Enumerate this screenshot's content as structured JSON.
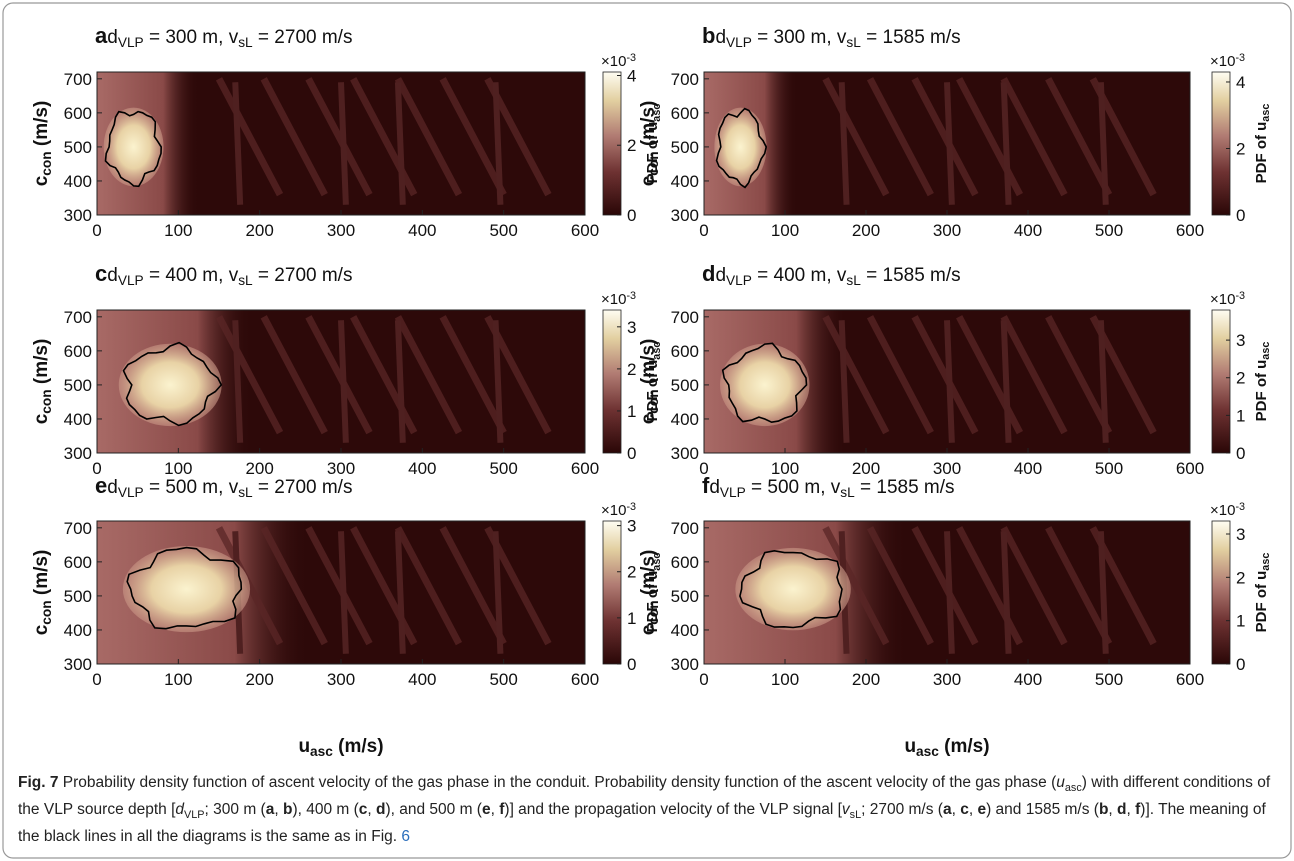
{
  "chart_data": [
    {
      "type": "heatmap",
      "label": "a",
      "title": [
        "d",
        "VLP",
        " = 300 m, v",
        "sL",
        " = 2700 m/s"
      ],
      "ylabel": [
        "c",
        "con",
        " (m/s)"
      ],
      "xlim": [
        0,
        600
      ],
      "xticks": [
        0,
        100,
        200,
        300,
        400,
        500,
        600
      ],
      "ylim": [
        300,
        720
      ],
      "yticks": [
        300,
        400,
        500,
        600,
        700
      ],
      "colorbar": {
        "label": [
          "PDF of u",
          "asc"
        ],
        "scale": [
          "×10",
          "-3"
        ],
        "lim": [
          0,
          4.1
        ],
        "ticks": [
          0,
          2,
          4
        ]
      }
    },
    {
      "type": "heatmap",
      "label": "b",
      "title": [
        "d",
        "VLP",
        " = 300 m, v",
        "sL",
        " = 1585 m/s"
      ],
      "ylabel": [
        "c",
        "con",
        " (m/s)"
      ],
      "xlim": [
        0,
        600
      ],
      "xticks": [
        0,
        100,
        200,
        300,
        400,
        500,
        600
      ],
      "ylim": [
        300,
        720
      ],
      "yticks": [
        300,
        400,
        500,
        600,
        700
      ],
      "colorbar": {
        "label": [
          "PDF of u",
          "asc"
        ],
        "scale": [
          "×10",
          "-3"
        ],
        "lim": [
          0,
          4.3
        ],
        "ticks": [
          0,
          2,
          4
        ]
      }
    },
    {
      "type": "heatmap",
      "label": "c",
      "title": [
        "d",
        "VLP",
        " = 400 m, v",
        "sL",
        " = 2700 m/s"
      ],
      "ylabel": [
        "c",
        "con",
        " (m/s)"
      ],
      "xlim": [
        0,
        600
      ],
      "xticks": [
        0,
        100,
        200,
        300,
        400,
        500,
        600
      ],
      "ylim": [
        300,
        720
      ],
      "yticks": [
        300,
        400,
        500,
        600,
        700
      ],
      "colorbar": {
        "label": [
          "PDF of u",
          "asc"
        ],
        "scale": [
          "×10",
          "-3"
        ],
        "lim": [
          0,
          3.4
        ],
        "ticks": [
          0,
          1,
          2,
          3
        ]
      }
    },
    {
      "type": "heatmap",
      "label": "d",
      "title": [
        "d",
        "VLP",
        " = 400 m, v",
        "sL",
        " = 1585 m/s"
      ],
      "ylabel": [
        "c",
        "con",
        " (m/s)"
      ],
      "xlim": [
        0,
        600
      ],
      "xticks": [
        0,
        100,
        200,
        300,
        400,
        500,
        600
      ],
      "ylim": [
        300,
        720
      ],
      "yticks": [
        300,
        400,
        500,
        600,
        700
      ],
      "colorbar": {
        "label": [
          "PDF of u",
          "asc"
        ],
        "scale": [
          "×10",
          "-3"
        ],
        "lim": [
          0,
          3.8
        ],
        "ticks": [
          0,
          1,
          2,
          3
        ]
      }
    },
    {
      "type": "heatmap",
      "label": "e",
      "title": [
        "d",
        "VLP",
        " = 500 m, v",
        "sL",
        " = 2700 m/s"
      ],
      "ylabel": [
        "c",
        "con",
        " (m/s)"
      ],
      "xlabel": [
        "u",
        "asc",
        " (m/s)"
      ],
      "xlim": [
        0,
        600
      ],
      "xticks": [
        0,
        100,
        200,
        300,
        400,
        500,
        600
      ],
      "ylim": [
        300,
        720
      ],
      "yticks": [
        300,
        400,
        500,
        600,
        700
      ],
      "colorbar": {
        "label": [
          "PDF of u",
          "asc"
        ],
        "scale": [
          "×10",
          "-3"
        ],
        "lim": [
          0,
          3.1
        ],
        "ticks": [
          0,
          1,
          2,
          3
        ]
      }
    },
    {
      "type": "heatmap",
      "label": "f",
      "title": [
        "d",
        "VLP",
        " = 500 m, v",
        "sL",
        " = 1585 m/s"
      ],
      "ylabel": [
        "c",
        "con",
        " (m/s)"
      ],
      "xlabel": [
        "u",
        "asc",
        " (m/s)"
      ],
      "xlim": [
        0,
        600
      ],
      "xticks": [
        0,
        100,
        200,
        300,
        400,
        500,
        600
      ],
      "ylim": [
        300,
        720
      ],
      "yticks": [
        300,
        400,
        500,
        600,
        700
      ],
      "colorbar": {
        "label": [
          "PDF of u",
          "asc"
        ],
        "scale": [
          "×10",
          "-3"
        ],
        "lim": [
          0,
          3.3
        ],
        "ticks": [
          0,
          1,
          2,
          3
        ]
      }
    }
  ],
  "caption": {
    "runs": [
      {
        "text": "Fig. 7",
        "style": "bold"
      },
      {
        "text": "  Probability density function of ascent velocity of the gas phase in the conduit. Probability density function of the ascent velocity of the gas phase (",
        "style": "plain"
      },
      {
        "text": "u",
        "style": "italic"
      },
      {
        "text": "asc",
        "style": "sub"
      },
      {
        "text": ") with different conditions of the VLP source depth [",
        "style": "plain"
      },
      {
        "text": "d",
        "style": "italic"
      },
      {
        "text": "VLP",
        "style": "sub"
      },
      {
        "text": "; 300 m (",
        "style": "plain"
      },
      {
        "text": "a",
        "style": "bold"
      },
      {
        "text": ", ",
        "style": "plain"
      },
      {
        "text": "b",
        "style": "bold"
      },
      {
        "text": "), 400 m (",
        "style": "plain"
      },
      {
        "text": "c",
        "style": "bold"
      },
      {
        "text": ", ",
        "style": "plain"
      },
      {
        "text": "d",
        "style": "bold"
      },
      {
        "text": "), and 500 m (",
        "style": "plain"
      },
      {
        "text": "e",
        "style": "bold"
      },
      {
        "text": ", ",
        "style": "plain"
      },
      {
        "text": "f",
        "style": "bold"
      },
      {
        "text": ")] and the propagation velocity of the VLP signal [",
        "style": "plain"
      },
      {
        "text": "v",
        "style": "italic"
      },
      {
        "text": "sL",
        "style": "sub"
      },
      {
        "text": "; 2700 m/s (",
        "style": "plain"
      },
      {
        "text": "a",
        "style": "bold"
      },
      {
        "text": ", ",
        "style": "plain"
      },
      {
        "text": "c",
        "style": "bold"
      },
      {
        "text": ", ",
        "style": "plain"
      },
      {
        "text": "e",
        "style": "bold"
      },
      {
        "text": ") and 1585 m/s (",
        "style": "plain"
      },
      {
        "text": "b",
        "style": "bold"
      },
      {
        "text": ", ",
        "style": "plain"
      },
      {
        "text": "d",
        "style": "bold"
      },
      {
        "text": ", ",
        "style": "plain"
      },
      {
        "text": "f",
        "style": "bold"
      },
      {
        "text": ")]. The meaning of the black lines in all the diagrams is the same as in Fig. ",
        "style": "plain"
      },
      {
        "text": "6",
        "style": "link"
      }
    ]
  }
}
